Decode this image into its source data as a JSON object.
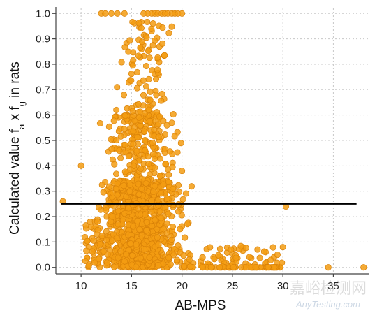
{
  "chart_data": {
    "type": "scatter",
    "xlabel": "AB-MPS",
    "ylabel_main": "Calculated value f",
    "ylabel_sub_a": "a",
    "ylabel_mid": " x f",
    "ylabel_sub_g": "g",
    "ylabel_tail": " in rats",
    "xlim": [
      7.5,
      38.5
    ],
    "ylim": [
      -0.02,
      1.02
    ],
    "x_ticks": [
      10,
      15,
      20,
      25,
      30,
      35
    ],
    "y_ticks": [
      0.0,
      0.1,
      0.2,
      0.3,
      0.4,
      0.5,
      0.6,
      0.7,
      0.8,
      0.9,
      1.0
    ],
    "x_tick_labels": [
      "10",
      "15",
      "20",
      "25",
      "30",
      "35"
    ],
    "y_tick_labels": [
      "0.0",
      "0.1",
      "0.2",
      "0.3",
      "0.4",
      "0.5",
      "0.6",
      "0.7",
      "0.8",
      "0.9",
      "1.0"
    ],
    "grid": true,
    "reference_line_y": 0.25,
    "point_color": "#f39c12",
    "highlighted_points": [
      {
        "x": 8.2,
        "y": 0.26
      },
      {
        "x": 10.0,
        "y": 0.4
      },
      {
        "x": 30.3,
        "y": 0.24
      },
      {
        "x": 30.0,
        "y": 0.08
      },
      {
        "x": 34.5,
        "y": 0.0
      },
      {
        "x": 38.0,
        "y": 0.0
      },
      {
        "x": 20.0,
        "y": 0.38
      },
      {
        "x": 13.5,
        "y": 0.62
      }
    ],
    "top_row_points_x": [
      12.0,
      12.4,
      13.0,
      13.6,
      14.3,
      16.2,
      16.6,
      17.0,
      17.3,
      17.6,
      18.0,
      18.3,
      18.6,
      19.0,
      19.3,
      19.6,
      20.0
    ]
  },
  "watermark": {
    "cn_text": "嘉峪检测网",
    "en_text": "AnyTesting.com"
  }
}
